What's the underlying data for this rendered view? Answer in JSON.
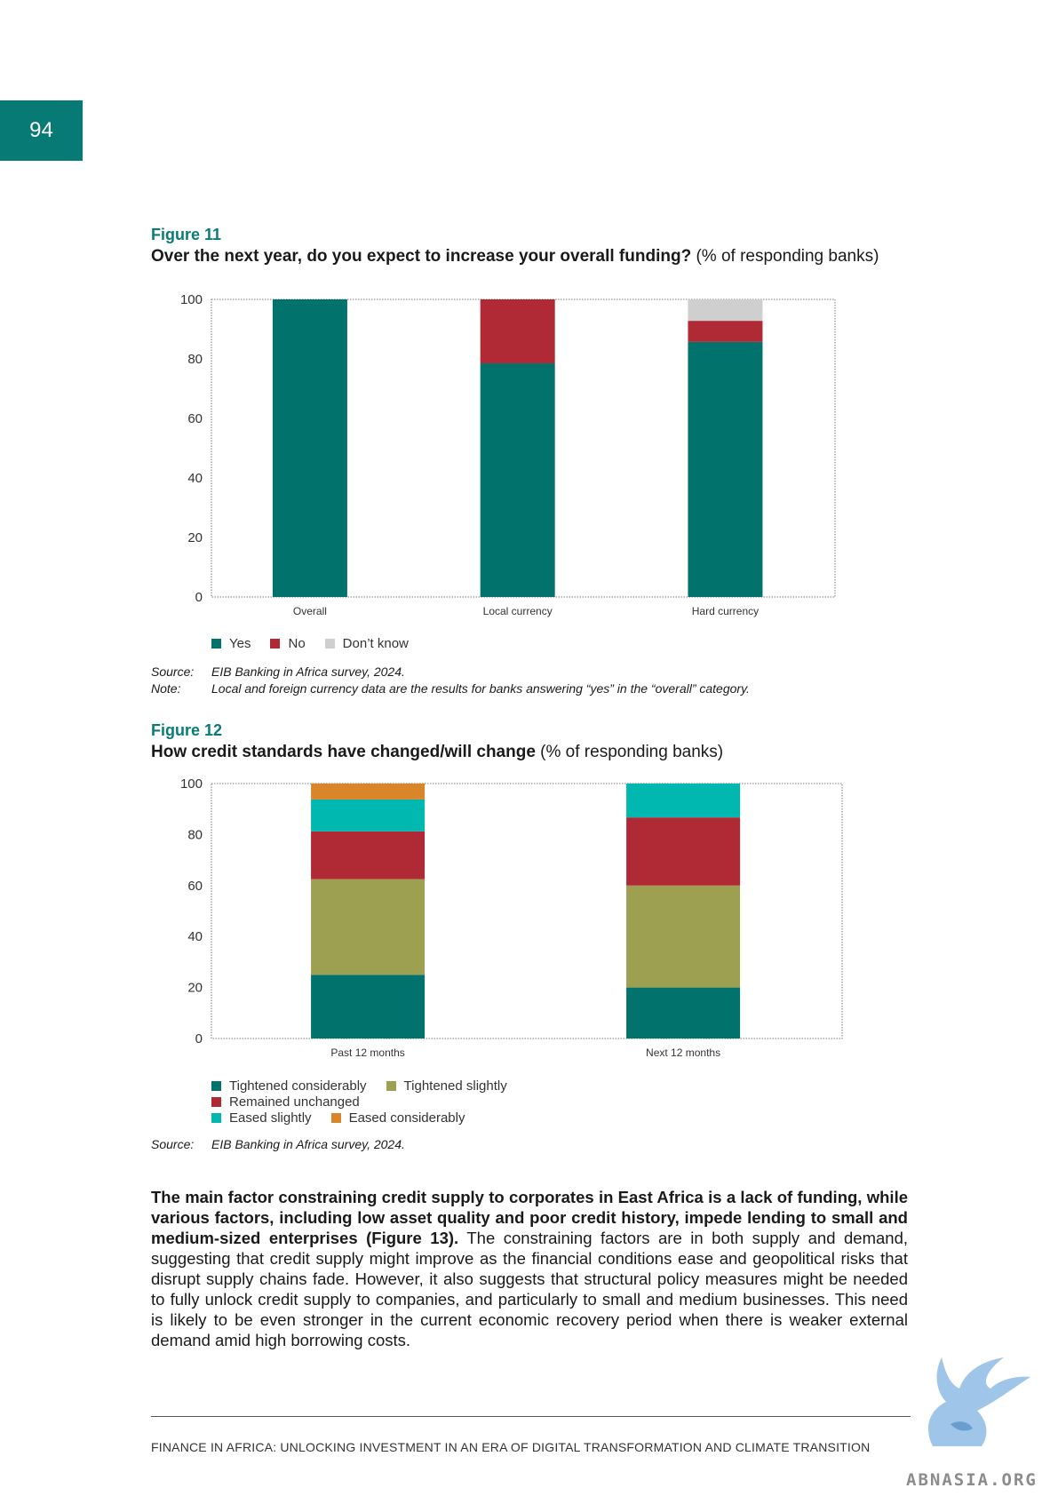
{
  "page_number": "94",
  "colors": {
    "teal_dark": "#01736c",
    "red": "#b02a35",
    "grey": "#cfcfcf",
    "olive": "#9da050",
    "cyan": "#00b8b0",
    "orange": "#d9862a",
    "accent": "#087a75"
  },
  "figure11": {
    "label": "Figure 11",
    "title_bold": "Over the next year, do you expect to increase your overall funding?",
    "title_unit": "(% of responding banks)",
    "source_key": "Source:",
    "source": "EIB Banking in Africa survey, 2024.",
    "note_key": "Note:",
    "note": "Local and foreign currency data are the results for banks answering “yes” in the “overall” category."
  },
  "figure12": {
    "label": "Figure 12",
    "title_bold": "How credit standards have changed/will change",
    "title_unit": "(% of responding banks)",
    "source_key": "Source:",
    "source": "EIB Banking in Africa survey, 2024."
  },
  "chart_data": [
    {
      "type": "bar",
      "stacked": true,
      "categories": [
        "Overall",
        "Local currency",
        "Hard currency"
      ],
      "series": [
        {
          "name": "Yes",
          "color": "#01736c",
          "values": [
            100,
            78.5,
            85.7
          ]
        },
        {
          "name": "No",
          "color": "#b02a35",
          "values": [
            0,
            21.5,
            7.1
          ]
        },
        {
          "name": "Don’t know",
          "color": "#cfcfcf",
          "values": [
            0,
            0,
            7.2
          ]
        }
      ],
      "ylim": [
        0,
        100
      ],
      "yticks": [
        0,
        20,
        40,
        60,
        80,
        100
      ],
      "legend_position": "bottom-left",
      "grid": false
    },
    {
      "type": "bar",
      "stacked": true,
      "categories": [
        "Past 12 months",
        "Next 12 months"
      ],
      "series": [
        {
          "name": "Tightened considerably",
          "color": "#01736c",
          "values": [
            25,
            20
          ]
        },
        {
          "name": "Tightened slightly",
          "color": "#9da050",
          "values": [
            37.5,
            40
          ]
        },
        {
          "name": "Remained unchanged",
          "color": "#b02a35",
          "values": [
            18.75,
            26.7
          ]
        },
        {
          "name": "Eased slightly",
          "color": "#00b8b0",
          "values": [
            12.5,
            13.3
          ]
        },
        {
          "name": "Eased considerably",
          "color": "#d9862a",
          "values": [
            6.25,
            0
          ]
        }
      ],
      "ylim": [
        0,
        100
      ],
      "yticks": [
        0,
        20,
        40,
        60,
        80,
        100
      ],
      "legend_position": "bottom-left",
      "grid": false
    }
  ],
  "body": {
    "bold": "The main factor constraining credit supply to corporates in East Africa is a lack of funding, while various factors, including low asset quality and poor credit history, impede lending to small and medium-sized enterprises (Figure 13).",
    "text": " The constraining factors are in both supply and demand, suggesting that credit supply might improve as the financial conditions ease and geopolitical risks that disrupt supply chains fade. However, it also suggests that structural policy measures might be needed to fully unlock credit supply to companies, and particularly to small and medium businesses. This need is likely to be even stronger in the current economic recovery period when there is weaker external demand amid high borrowing costs."
  },
  "footer": "FINANCE IN AFRICA: UNLOCKING INVESTMENT IN AN ERA OF DIGITAL TRANSFORMATION AND CLIMATE TRANSITION",
  "watermark": "ABNASIA.ORG"
}
